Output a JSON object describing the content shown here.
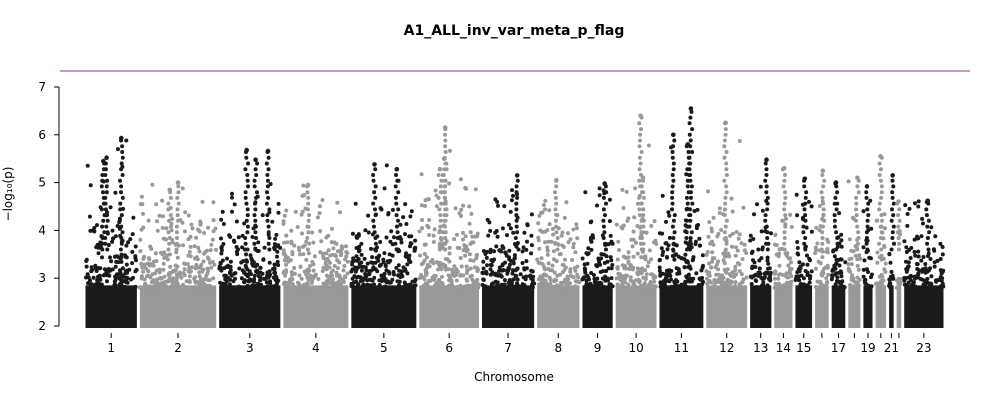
{
  "chart_data": {
    "type": "scatter",
    "title": "A1_ALL_inv_var_meta_p_flag",
    "xlabel": "Chromosome",
    "ylabel": "−log₁₀(p)",
    "ylim": [
      2,
      7
    ],
    "y_ticks": [
      2,
      3,
      4,
      5,
      6,
      7
    ],
    "threshold": 7.3,
    "grid": false,
    "colors": {
      "odd": "#1a1a1a",
      "even": "#999999",
      "threshold_line": "#8b3a8b"
    },
    "x_tick_labels": [
      "1",
      "2",
      "3",
      "4",
      "5",
      "6",
      "7",
      "8",
      "9",
      "10",
      "11",
      "12",
      "13",
      "14",
      "15",
      "17",
      "19",
      "21",
      "23"
    ],
    "chromosomes": [
      {
        "chrom": "1",
        "span": [
          0.0,
          0.072
        ],
        "peak": 5.93,
        "extra_peaks": [
          5.52,
          5.45
        ]
      },
      {
        "chrom": "2",
        "span": [
          0.072,
          0.177
        ],
        "peak": 5.0,
        "extra_peaks": [
          4.85
        ]
      },
      {
        "chrom": "3",
        "span": [
          0.177,
          0.262
        ],
        "peak": 5.68,
        "extra_peaks": [
          5.66,
          5.48
        ]
      },
      {
        "chrom": "4",
        "span": [
          0.262,
          0.352
        ],
        "peak": 4.95,
        "extra_peaks": []
      },
      {
        "chrom": "5",
        "span": [
          0.352,
          0.442
        ],
        "peak": 5.38,
        "extra_peaks": [
          5.28
        ]
      },
      {
        "chrom": "6",
        "span": [
          0.442,
          0.525
        ],
        "peak": 6.15,
        "extra_peaks": [
          5.5,
          5.28
        ]
      },
      {
        "chrom": "7",
        "span": [
          0.525,
          0.598
        ],
        "peak": 5.15,
        "extra_peaks": []
      },
      {
        "chrom": "8",
        "span": [
          0.598,
          0.658
        ],
        "peak": 5.05,
        "extra_peaks": []
      },
      {
        "chrom": "9",
        "span": [
          0.658,
          0.702
        ],
        "peak": 4.98,
        "extra_peaks": []
      },
      {
        "chrom": "10",
        "span": [
          0.702,
          0.76
        ],
        "peak": 6.4,
        "extra_peaks": [
          5.1
        ]
      },
      {
        "chrom": "11",
        "span": [
          0.76,
          0.822
        ],
        "peak": 6.55,
        "extra_peaks": [
          6.0,
          5.8
        ]
      },
      {
        "chrom": "12",
        "span": [
          0.822,
          0.88
        ],
        "peak": 6.25,
        "extra_peaks": []
      },
      {
        "chrom": "13",
        "span": [
          0.88,
          0.912
        ],
        "peak": 5.48,
        "extra_peaks": []
      },
      {
        "chrom": "14",
        "span": [
          0.912,
          0.94
        ],
        "peak": 5.3,
        "extra_peaks": []
      },
      {
        "chrom": "15",
        "span": [
          0.94,
          0.966
        ],
        "peak": 5.08,
        "extra_peaks": []
      },
      {
        "chrom": "16",
        "span": [
          0.966,
          0.988
        ],
        "peak": 5.25,
        "extra_peaks": []
      },
      {
        "chrom": "17",
        "span": [
          0.988,
          1.01
        ],
        "peak": 5.0,
        "extra_peaks": []
      },
      {
        "chrom": "18",
        "span": [
          1.01,
          1.03
        ],
        "peak": 5.1,
        "extra_peaks": []
      },
      {
        "chrom": "19",
        "span": [
          1.03,
          1.046
        ],
        "peak": 4.92,
        "extra_peaks": []
      },
      {
        "chrom": "20",
        "span": [
          1.046,
          1.064
        ],
        "peak": 5.55,
        "extra_peaks": []
      },
      {
        "chrom": "21",
        "span": [
          1.064,
          1.074
        ],
        "peak": 5.15,
        "extra_peaks": []
      },
      {
        "chrom": "22",
        "span": [
          1.074,
          1.084
        ],
        "peak": 4.6,
        "extra_peaks": []
      },
      {
        "chrom": "23",
        "span": [
          1.084,
          1.14
        ],
        "peak": 4.62,
        "extra_peaks": []
      }
    ]
  }
}
